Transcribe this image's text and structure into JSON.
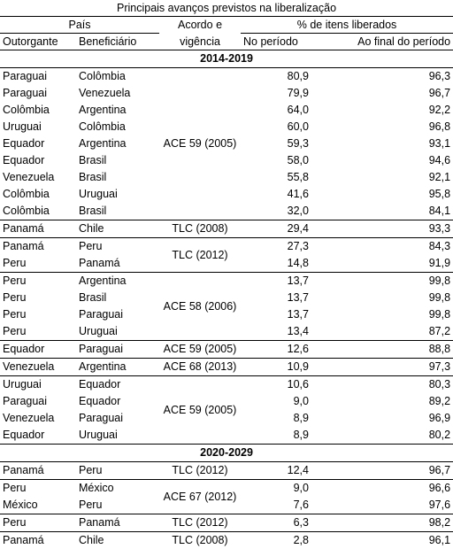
{
  "title": "Principais avanços previstos na liberalização",
  "headers": {
    "pais": "País",
    "acordo_line1": "Acordo e",
    "acordo_line2": "vigência",
    "pct": "% de itens liberados",
    "outorgante": "Outorgante",
    "beneficiario": "Beneficiário",
    "no_periodo": "No período",
    "ao_final": "Ao final do período"
  },
  "sections": [
    {
      "label": "2014-2019",
      "groups": [
        {
          "acordo": "ACE 59 (2005)",
          "rows": [
            [
              "Paraguai",
              "Colômbia",
              "80,9",
              "96,3"
            ],
            [
              "Paraguai",
              "Venezuela",
              "79,9",
              "96,7"
            ],
            [
              "Colômbia",
              "Argentina",
              "64,0",
              "92,2"
            ],
            [
              "Uruguai",
              "Colômbia",
              "60,0",
              "96,8"
            ],
            [
              "Equador",
              "Argentina",
              "59,3",
              "93,1"
            ],
            [
              "Equador",
              "Brasil",
              "58,0",
              "94,6"
            ],
            [
              "Venezuela",
              "Brasil",
              "55,8",
              "92,1"
            ],
            [
              "Colômbia",
              "Uruguai",
              "41,6",
              "95,8"
            ],
            [
              "Colômbia",
              "Brasil",
              "32,0",
              "84,1"
            ]
          ]
        },
        {
          "acordo": "TLC (2008)",
          "rows": [
            [
              "Panamá",
              "Chile",
              "29,4",
              "93,3"
            ]
          ]
        },
        {
          "acordo": "TLC (2012)",
          "rows": [
            [
              "Panamá",
              "Peru",
              "27,3",
              "84,3"
            ],
            [
              "Peru",
              "Panamá",
              "14,8",
              "91,9"
            ]
          ]
        },
        {
          "acordo": "ACE 58 (2006)",
          "rows": [
            [
              "Peru",
              "Argentina",
              "13,7",
              "99,8"
            ],
            [
              "Peru",
              "Brasil",
              "13,7",
              "99,8"
            ],
            [
              "Peru",
              "Paraguai",
              "13,7",
              "99,8"
            ],
            [
              "Peru",
              "Uruguai",
              "13,4",
              "87,2"
            ]
          ]
        },
        {
          "acordo": "ACE 59 (2005)",
          "rows": [
            [
              "Equador",
              "Paraguai",
              "12,6",
              "88,8"
            ]
          ]
        },
        {
          "acordo": "ACE 68 (2013)",
          "rows": [
            [
              "Venezuela",
              "Argentina",
              "10,9",
              "97,3"
            ]
          ]
        },
        {
          "acordo": "ACE 59 (2005)",
          "rows": [
            [
              "Uruguai",
              "Equador",
              "10,6",
              "80,3"
            ],
            [
              "Paraguai",
              "Equador",
              "9,0",
              "89,2"
            ],
            [
              "Venezuela",
              "Paraguai",
              "8,9",
              "96,9"
            ],
            [
              "Equador",
              "Uruguai",
              "8,9",
              "80,2"
            ]
          ]
        }
      ]
    },
    {
      "label": "2020-2029",
      "groups": [
        {
          "acordo": "TLC (2012)",
          "rows": [
            [
              "Panamá",
              "Peru",
              "12,4",
              "96,7"
            ]
          ]
        },
        {
          "acordo": "ACE 67 (2012)",
          "rows": [
            [
              "Peru",
              "México",
              "9,0",
              "96,6"
            ],
            [
              "México",
              "Peru",
              "7,6",
              "97,6"
            ]
          ]
        },
        {
          "acordo": "TLC (2012)",
          "rows": [
            [
              "Peru",
              "Panamá",
              "6,3",
              "98,2"
            ]
          ]
        },
        {
          "acordo": "TLC (2008)",
          "rows": [
            [
              "Panamá",
              "Chile",
              "2,8",
              "96,1"
            ]
          ]
        }
      ]
    }
  ]
}
